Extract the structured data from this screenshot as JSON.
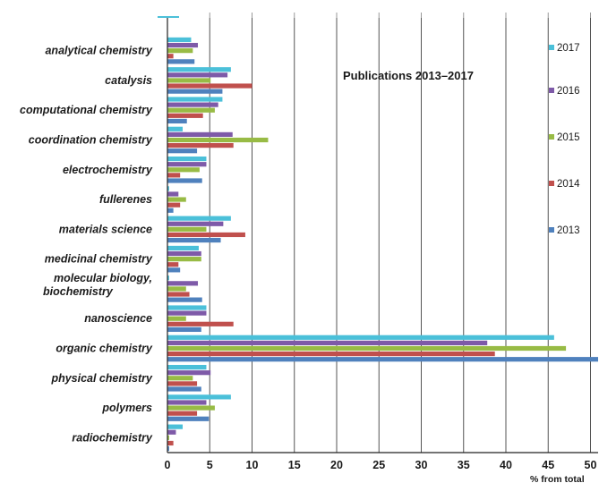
{
  "chart_data": {
    "type": "bar",
    "orientation": "horizontal",
    "title": "Publications 2013–2017",
    "xlabel": "% from total",
    "ylabel": "",
    "xlim": [
      0,
      51
    ],
    "xticks": [
      0,
      5,
      10,
      15,
      20,
      25,
      30,
      35,
      40,
      45,
      50
    ],
    "grid": "vertical",
    "legend_position": "right",
    "categories": [
      "analytical chemistry",
      "catalysis",
      "computational chemistry",
      "coordination chemistry",
      "electrochemistry",
      "fullerenes",
      "materials  science",
      "medicinal chemistry",
      "molecular biology, biochemistry",
      "nanoscience",
      "organic chemistry",
      "physical chemistry",
      "polymers",
      "radiochemistry"
    ],
    "series": [
      {
        "name": "2017",
        "color": "#4bc0d9",
        "values": [
          2.8,
          7.5,
          6.5,
          1.8,
          4.6,
          0.2,
          7.5,
          3.7,
          0.2,
          4.6,
          45.7,
          4.6,
          7.5,
          1.8
        ]
      },
      {
        "name": "2016",
        "color": "#7e5aa8",
        "values": [
          3.6,
          7.1,
          6.0,
          7.7,
          4.6,
          1.3,
          6.6,
          4.0,
          3.6,
          4.6,
          37.8,
          5.1,
          4.6,
          1.0
        ]
      },
      {
        "name": "2015",
        "color": "#98bb45",
        "values": [
          3.0,
          5.1,
          5.6,
          11.9,
          3.8,
          2.2,
          4.6,
          4.0,
          2.2,
          2.2,
          47.1,
          3.0,
          5.6,
          0.2
        ]
      },
      {
        "name": "2014",
        "color": "#c0504d",
        "values": [
          0.7,
          10.0,
          4.2,
          7.8,
          1.5,
          1.5,
          9.2,
          1.3,
          2.6,
          7.8,
          38.7,
          3.5,
          3.5,
          0.7
        ]
      },
      {
        "name": "2013",
        "color": "#4f81bd",
        "values": [
          3.2,
          6.5,
          2.3,
          3.5,
          4.1,
          0.7,
          6.3,
          1.5,
          4.1,
          4.0,
          51.3,
          4.0,
          4.9,
          0.2
        ]
      }
    ]
  }
}
